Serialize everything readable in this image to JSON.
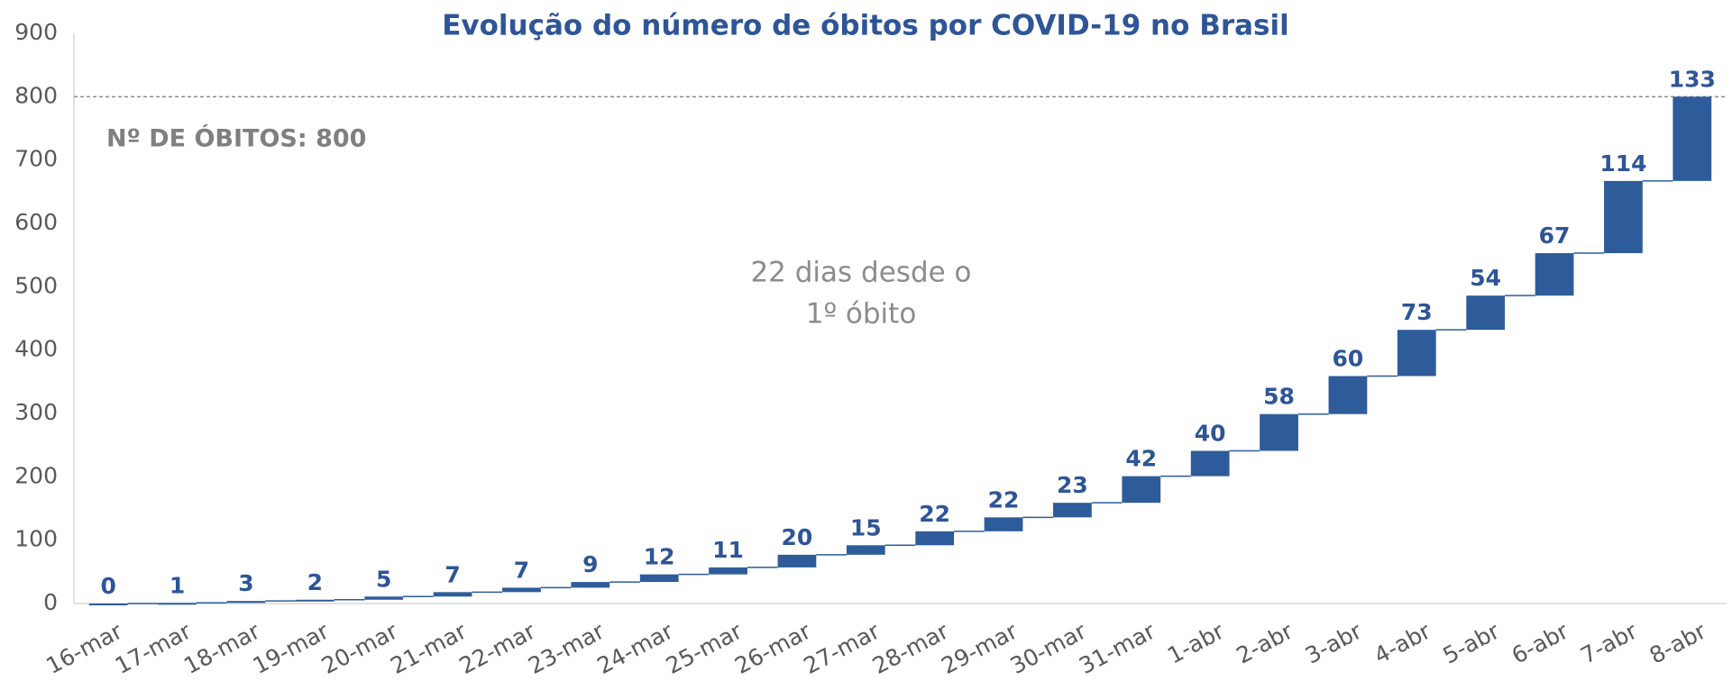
{
  "chart_data": {
    "type": "waterfall",
    "title": "Evolução do número de óbitos por COVID-19 no Brasil",
    "categories": [
      "16-mar",
      "17-mar",
      "18-mar",
      "19-mar",
      "20-mar",
      "21-mar",
      "22-mar",
      "23-mar",
      "24-mar",
      "25-mar",
      "26-mar",
      "27-mar",
      "28-mar",
      "29-mar",
      "30-mar",
      "31-mar",
      "1-abr",
      "2-abr",
      "3-abr",
      "4-abr",
      "5-abr",
      "6-abr",
      "7-abr",
      "8-abr"
    ],
    "values": [
      0,
      1,
      3,
      2,
      5,
      7,
      7,
      9,
      12,
      11,
      20,
      15,
      22,
      22,
      23,
      42,
      40,
      58,
      60,
      73,
      54,
      67,
      114,
      133
    ],
    "color": "#2e5c9a",
    "ylim": [
      0,
      900
    ],
    "yticks": [
      0,
      100,
      200,
      300,
      400,
      500,
      600,
      700,
      800,
      900
    ],
    "reference_line": 800,
    "annotations": [
      "Nº DE ÓBITOS: 800",
      "22 dias desde o",
      "1º óbito"
    ]
  }
}
